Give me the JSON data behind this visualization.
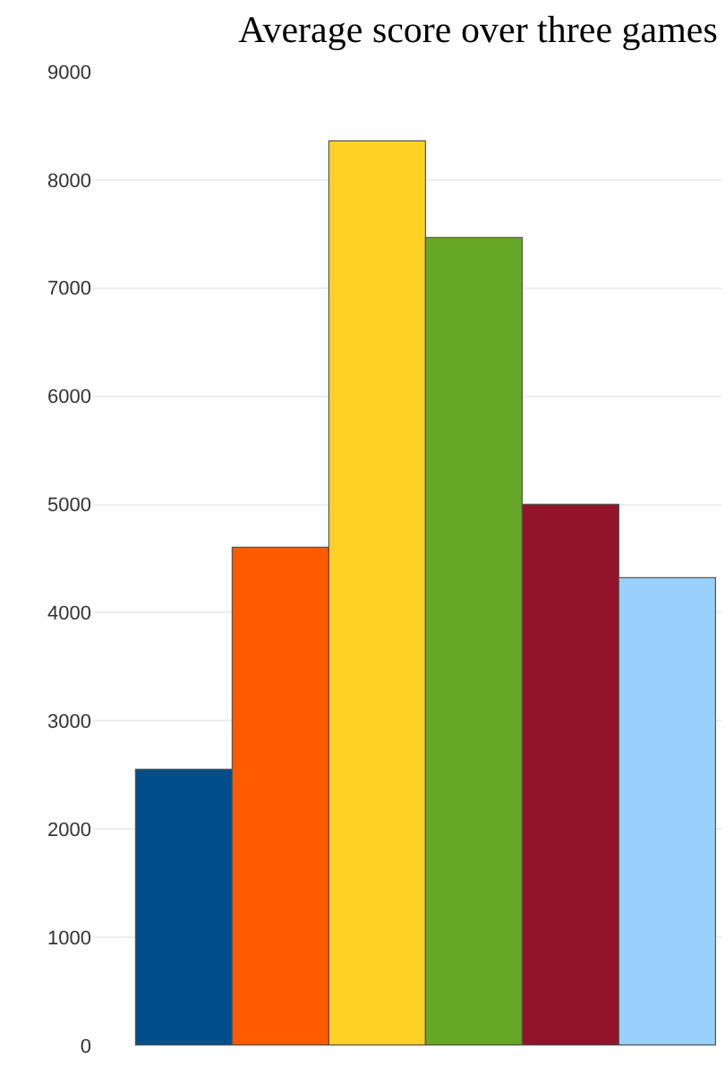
{
  "chart_data": {
    "type": "bar",
    "title": "Average score over three games",
    "categories": [
      null,
      null,
      null,
      null,
      null,
      null
    ],
    "values": [
      2540,
      4600,
      8360,
      7460,
      5000,
      4310
    ],
    "colors": [
      "#004f8c",
      "#ff5a00",
      "#fdd225",
      "#66a825",
      "#92132a",
      "#98d0fc"
    ],
    "ylim": [
      0,
      9000
    ],
    "yticks": [
      0,
      1000,
      2000,
      3000,
      4000,
      5000,
      6000,
      7000,
      8000,
      9000
    ],
    "grid": "y"
  }
}
